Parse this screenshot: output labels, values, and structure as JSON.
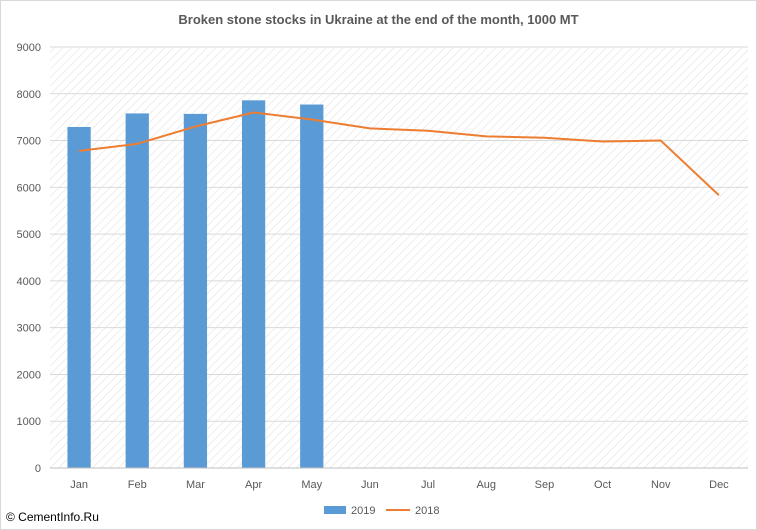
{
  "chart_data": {
    "type": "bar+line",
    "title": "Broken stone stocks in Ukraine at the end of the month, 1000 MT",
    "categories": [
      "Jan",
      "Feb",
      "Mar",
      "Apr",
      "May",
      "Jun",
      "Jul",
      "Aug",
      "Sep",
      "Oct",
      "Nov",
      "Dec"
    ],
    "ylim": [
      0,
      9000
    ],
    "yticks": [
      0,
      1000,
      2000,
      3000,
      4000,
      5000,
      6000,
      7000,
      8000,
      9000
    ],
    "grid": true,
    "legend_position": "bottom",
    "series": [
      {
        "name": "2019",
        "type": "bar",
        "color": "#5b9bd5",
        "values": [
          7290,
          7580,
          7570,
          7860,
          7770,
          null,
          null,
          null,
          null,
          null,
          null,
          null
        ]
      },
      {
        "name": "2018",
        "type": "line",
        "color": "#ed7d31",
        "values": [
          6780,
          6930,
          7300,
          7600,
          7450,
          7260,
          7210,
          7090,
          7060,
          6980,
          7000,
          5830
        ]
      }
    ]
  },
  "watermark": "© CementInfo.Ru"
}
